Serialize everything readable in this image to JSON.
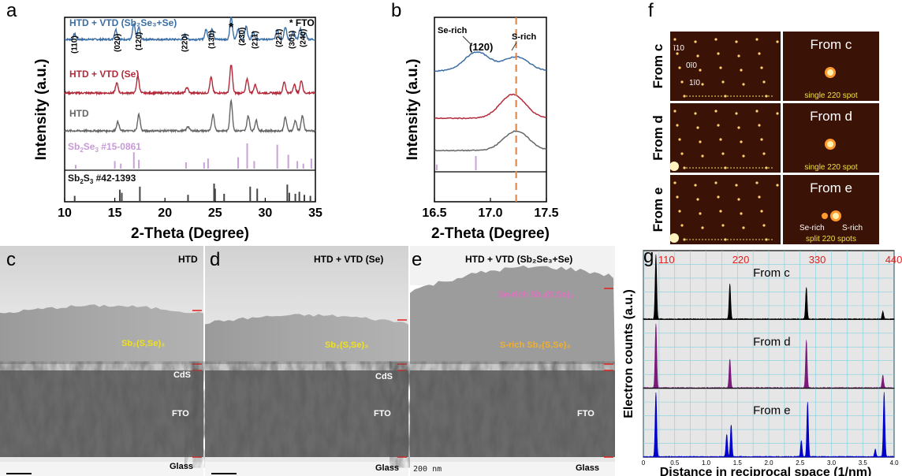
{
  "panel_letters": {
    "a": "a",
    "b": "b",
    "c": "c",
    "d": "d",
    "e": "e",
    "f": "f",
    "g": "g"
  },
  "chart_data": [
    {
      "panel": "a",
      "type": "line",
      "xlabel": "2-Theta (Degree)",
      "ylabel": "Intensity (a.u.)",
      "xlim": [
        10,
        35
      ],
      "xticks": [
        10,
        15,
        20,
        25,
        30,
        35
      ],
      "xtick_labels": [
        "10",
        "15",
        "20",
        "25",
        "30",
        "35"
      ],
      "series": [
        {
          "name": "HTD + VTD (Sb2Se3+Se)",
          "color": "#3a6ea5",
          "peaks": [
            [
              11.0,
              0.25
            ],
            [
              15.1,
              0.45
            ],
            [
              16.9,
              0.7
            ],
            [
              17.4,
              0.55
            ],
            [
              22.0,
              0.2
            ],
            [
              24.1,
              0.45
            ],
            [
              24.7,
              0.5
            ],
            [
              26.6,
              1.0
            ],
            [
              27.3,
              0.45
            ],
            [
              28.1,
              0.6
            ],
            [
              28.8,
              0.35
            ],
            [
              31.2,
              0.45
            ],
            [
              32.0,
              0.55
            ],
            [
              32.8,
              0.35
            ],
            [
              33.5,
              0.5
            ],
            [
              34.0,
              0.3
            ]
          ]
        },
        {
          "name": "HTD + VTD (Se)",
          "color": "#b22a3a",
          "peaks": [
            [
              15.2,
              0.35
            ],
            [
              17.3,
              0.6
            ],
            [
              22.2,
              0.2
            ],
            [
              24.6,
              0.55
            ],
            [
              26.6,
              1.0
            ],
            [
              28.2,
              0.5
            ],
            [
              29.0,
              0.3
            ],
            [
              31.9,
              0.4
            ],
            [
              32.9,
              0.3
            ],
            [
              33.6,
              0.45
            ]
          ]
        },
        {
          "name": "HTD",
          "color": "#666666",
          "peaks": [
            [
              15.3,
              0.3
            ],
            [
              17.4,
              0.55
            ],
            [
              22.3,
              0.15
            ],
            [
              24.8,
              0.55
            ],
            [
              26.6,
              1.0
            ],
            [
              28.3,
              0.5
            ],
            [
              29.1,
              0.35
            ],
            [
              32.0,
              0.45
            ],
            [
              33.0,
              0.35
            ],
            [
              33.7,
              0.5
            ]
          ]
        }
      ],
      "peak_labels": [
        "(110)",
        "(020)",
        "(120)",
        "(220)",
        "(130)",
        "(230)",
        "(211)",
        "(221)",
        "(301)",
        "(240)"
      ],
      "peak_label_positions": [
        10.9,
        15.2,
        17.3,
        21.9,
        24.6,
        27.6,
        28.9,
        31.3,
        32.6,
        33.7
      ],
      "fto_marker": "*",
      "fto_label": "* FTO",
      "reference_se": {
        "label_main": "Sb",
        "label_sub1": "2",
        "label_mid": "Se",
        "label_sub2": "3",
        "label_tail": " #15-0861",
        "color": "#c8a2d8",
        "sticks": [
          [
            11.1,
            0.15
          ],
          [
            15.0,
            0.3
          ],
          [
            15.6,
            0.2
          ],
          [
            16.9,
            0.65
          ],
          [
            17.4,
            0.35
          ],
          [
            22.1,
            0.25
          ],
          [
            23.9,
            0.25
          ],
          [
            24.3,
            0.4
          ],
          [
            27.3,
            0.45
          ],
          [
            28.2,
            1.0
          ],
          [
            28.9,
            0.3
          ],
          [
            31.2,
            0.95
          ],
          [
            32.3,
            0.55
          ],
          [
            33.2,
            0.3
          ],
          [
            33.8,
            0.2
          ],
          [
            34.6,
            0.4
          ]
        ]
      },
      "reference_s": {
        "label_main": "Sb",
        "label_sub1": "2",
        "label_mid": "S",
        "label_sub2": "3",
        "label_tail": "  #42-1393",
        "color": "#444444",
        "sticks": [
          [
            11.0,
            0.25
          ],
          [
            15.5,
            0.55
          ],
          [
            15.7,
            0.4
          ],
          [
            17.5,
            0.7
          ],
          [
            22.3,
            0.3
          ],
          [
            24.9,
            0.85
          ],
          [
            25.0,
            0.6
          ],
          [
            25.9,
            0.35
          ],
          [
            28.5,
            0.7
          ],
          [
            29.2,
            0.6
          ],
          [
            32.2,
            0.8
          ],
          [
            32.4,
            0.4
          ],
          [
            33.0,
            0.35
          ],
          [
            33.4,
            0.45
          ],
          [
            33.9,
            0.3
          ],
          [
            34.5,
            0.25
          ]
        ]
      }
    },
    {
      "panel": "b",
      "type": "line",
      "xlabel": "2-Theta (Degree)",
      "ylabel": "Intensity (a.u.)",
      "xlim": [
        16.5,
        17.5
      ],
      "xticks": [
        16.5,
        17.0,
        17.5
      ],
      "xtick_labels": [
        "16.5",
        "17.0",
        "17.5"
      ],
      "series": [
        {
          "color": "#3a6ea5",
          "peaks": [
            [
              16.88,
              0.6
            ],
            [
              17.23,
              0.45
            ]
          ]
        },
        {
          "color": "#b22a3a",
          "peaks": [
            [
              17.2,
              0.55
            ]
          ]
        },
        {
          "color": "#666666",
          "peaks": [
            [
              17.23,
              0.55
            ]
          ]
        }
      ],
      "dashed_line_x": 17.23,
      "annotations": {
        "se_rich": "Se-rich",
        "s_rich": "S-rich",
        "plane": "(120)"
      },
      "reference_sticks": [
        [
          16.52,
          0.4
        ],
        [
          16.87,
          1.0
        ]
      ]
    },
    {
      "panel": "g",
      "type": "line",
      "xlabel": "Distance in reciprocal space (1/nm)",
      "ylabel": "Electron counts (a.u.)",
      "xlim": [
        0,
        4.0
      ],
      "xticks": [
        0,
        0.5,
        1.0,
        1.5,
        2.0,
        2.5,
        3.0,
        3.5,
        4.0
      ],
      "xtick_labels": [
        "0",
        "0.5",
        "1.0",
        "1.5",
        "2.0",
        "2.5",
        "3.0",
        "3.5",
        "4.0"
      ],
      "peak_labels": [
        "110",
        "220",
        "330",
        "440"
      ],
      "peak_label_positions": [
        0.2,
        1.38,
        2.6,
        3.82
      ],
      "series": [
        {
          "name": "From c",
          "color": "#000000",
          "peaks": [
            [
              0.2,
              1.0
            ],
            [
              1.38,
              0.55
            ],
            [
              2.6,
              0.5
            ],
            [
              3.82,
              0.12
            ]
          ]
        },
        {
          "name": "From d",
          "color": "#7a1a7a",
          "peaks": [
            [
              0.2,
              1.0
            ],
            [
              1.38,
              0.45
            ],
            [
              2.6,
              0.75
            ],
            [
              3.82,
              0.2
            ]
          ]
        },
        {
          "name": "From e",
          "color": "#0000cc",
          "peaks": [
            [
              0.2,
              1.0
            ],
            [
              1.33,
              0.35
            ],
            [
              1.4,
              0.5
            ],
            [
              2.52,
              0.25
            ],
            [
              2.62,
              0.85
            ],
            [
              3.7,
              0.12
            ],
            [
              3.84,
              1.0
            ]
          ]
        }
      ]
    }
  ],
  "panel_f": {
    "rows": [
      {
        "side_label": "From c",
        "inset_label": "From c",
        "caption": "single 220 spot"
      },
      {
        "side_label": "From d",
        "inset_label": "From d",
        "caption": "single 220 spot"
      },
      {
        "side_label": "From e",
        "inset_label": "From e",
        "caption": "split 220 spots"
      }
    ],
    "index_labels": [
      "ī10",
      "0ī0",
      "1ī0"
    ],
    "se_rich": "Se-rich",
    "s_rich": "S-rich"
  },
  "tem": {
    "c": {
      "title": "HTD",
      "film": "Sb₂(S,Se)₃",
      "cds": "CdS",
      "fto": "FTO",
      "glass": "Glass"
    },
    "d": {
      "title": "HTD + VTD (Se)",
      "film": "Sb₂(S,Se)₃",
      "cds": "CdS",
      "fto": "FTO",
      "glass": "Glass"
    },
    "e": {
      "title": "HTD + VTD (Sb₂Se₃+Se)",
      "se_rich": "Se-rich Sb₂(S,Se)₃",
      "s_rich": "S-rich Sb₂(S,Se)₃",
      "fto": "FTO",
      "glass": "Glass",
      "scale": "200 nm"
    }
  }
}
